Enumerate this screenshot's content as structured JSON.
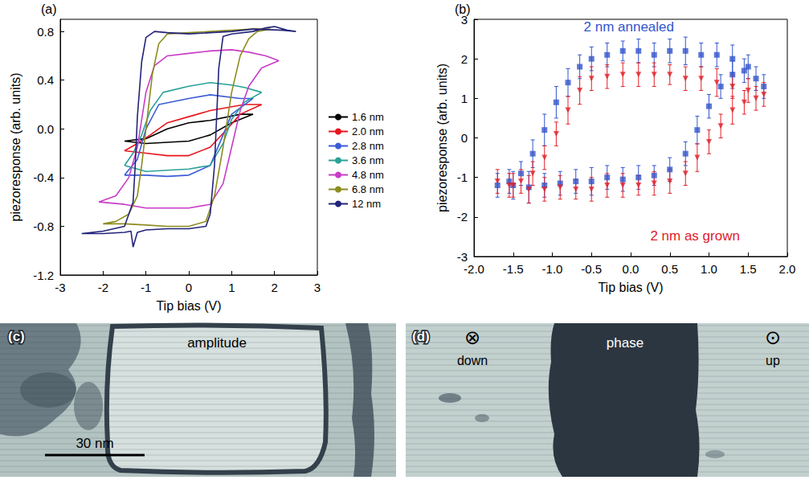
{
  "chart_data": [
    {
      "type": "line",
      "panel_label": "(a)",
      "x_label": "Tip bias (V)",
      "y_label": "piezoresponse (arb. units)",
      "xlim": [
        -3,
        3
      ],
      "xticks": [
        -3,
        -2,
        -1,
        0,
        1,
        2,
        3
      ],
      "ylim": [
        -1.2,
        0.9
      ],
      "yticks": [
        -1.2,
        -0.8,
        -0.4,
        {
          "value": 0,
          "label": "0.0"
        },
        0.4,
        0.8
      ],
      "grid": false,
      "legend": "right",
      "series": [
        {
          "name": "1.6 nm",
          "color": "#000000",
          "x": [
            -1.5,
            -1.0,
            -0.5,
            0.0,
            0.5,
            1.0,
            1.5,
            1.2,
            0.5,
            0.0,
            -0.5,
            -1.0,
            -1.5
          ],
          "values": [
            -0.1,
            -0.12,
            -0.11,
            -0.1,
            -0.05,
            0.05,
            0.12,
            0.12,
            0.07,
            0.05,
            0.0,
            -0.08,
            -0.1
          ]
        },
        {
          "name": "2.0 nm",
          "color": "#e8141c",
          "x": [
            -1.5,
            -1.0,
            -0.5,
            0.0,
            0.5,
            0.9,
            1.2,
            1.7,
            1.3,
            0.5,
            0.0,
            -0.5,
            -0.9,
            -1.2,
            -1.5
          ],
          "values": [
            -0.18,
            -0.2,
            -0.22,
            -0.22,
            -0.15,
            0.0,
            0.12,
            0.2,
            0.2,
            0.15,
            0.1,
            0.05,
            -0.05,
            -0.12,
            -0.18
          ]
        },
        {
          "name": "2.8 nm",
          "color": "#3b5bd6",
          "x": [
            -1.5,
            -1.0,
            -0.5,
            0.0,
            0.5,
            0.8,
            1.0,
            1.5,
            1.2,
            0.5,
            0.0,
            -0.7,
            -1.0,
            -1.2,
            -1.5
          ],
          "values": [
            -0.38,
            -0.38,
            -0.39,
            -0.38,
            -0.3,
            -0.05,
            0.12,
            0.25,
            0.25,
            0.28,
            0.25,
            0.2,
            0.0,
            -0.25,
            -0.38
          ]
        },
        {
          "name": "3.6 nm",
          "color": "#2aa198",
          "x": [
            -1.5,
            -1.0,
            -0.5,
            0.0,
            0.5,
            0.8,
            1.0,
            1.3,
            1.7,
            1.3,
            1.0,
            0.5,
            0.0,
            -0.6,
            -0.9,
            -1.1,
            -1.3,
            -1.5
          ],
          "values": [
            -0.3,
            -0.35,
            -0.34,
            -0.33,
            -0.3,
            -0.12,
            0.08,
            0.22,
            0.3,
            0.34,
            0.36,
            0.38,
            0.35,
            0.3,
            0.15,
            -0.05,
            -0.2,
            -0.3
          ]
        },
        {
          "name": "4.8 nm",
          "color": "#c83cc8",
          "x": [
            -2.1,
            -1.5,
            -1.0,
            -0.5,
            0.0,
            0.5,
            0.8,
            1.0,
            1.2,
            1.4,
            1.7,
            2.1,
            1.8,
            1.4,
            1.0,
            0.5,
            0.0,
            -0.5,
            -0.8,
            -1.0,
            -1.2,
            -1.4,
            -1.7,
            -2.1
          ],
          "values": [
            -0.6,
            -0.62,
            -0.65,
            -0.65,
            -0.65,
            -0.62,
            -0.45,
            -0.15,
            0.15,
            0.35,
            0.5,
            0.56,
            0.6,
            0.63,
            0.65,
            0.64,
            0.62,
            0.6,
            0.52,
            0.3,
            -0.15,
            -0.4,
            -0.55,
            -0.6
          ]
        },
        {
          "name": "6.8 nm",
          "color": "#8c8c1e",
          "x": [
            -2.0,
            -1.5,
            -1.0,
            -0.5,
            0.0,
            0.4,
            0.6,
            0.8,
            1.0,
            1.2,
            1.4,
            1.6,
            1.9,
            1.5,
            1.0,
            0.5,
            0.0,
            -0.5,
            -0.7,
            -0.85,
            -1.0,
            -1.1,
            -1.2,
            -1.4,
            -1.7,
            -2.0
          ],
          "values": [
            -0.78,
            -0.78,
            -0.79,
            -0.8,
            -0.8,
            -0.76,
            -0.55,
            -0.15,
            0.3,
            0.6,
            0.74,
            0.8,
            0.82,
            0.82,
            0.81,
            0.8,
            0.79,
            0.78,
            0.7,
            0.45,
            0.0,
            -0.3,
            -0.55,
            -0.7,
            -0.76,
            -0.78
          ]
        },
        {
          "name": "12 nm",
          "color": "#23237a",
          "x": [
            -2.5,
            -2.0,
            -1.5,
            -1.35,
            -1.3,
            -1.2,
            -1.0,
            -0.5,
            0.0,
            0.4,
            0.5,
            0.6,
            0.65,
            0.7,
            0.8,
            1.0,
            1.5,
            1.8,
            2.0,
            2.3,
            2.5,
            2.2,
            1.5,
            1.0,
            0.5,
            0.0,
            -0.5,
            -0.8,
            -1.0,
            -1.1,
            -1.2,
            -1.25,
            -1.3,
            -1.5,
            -2.0,
            -2.5
          ],
          "values": [
            -0.86,
            -0.86,
            -0.85,
            -0.84,
            -0.97,
            -0.85,
            -0.83,
            -0.82,
            -0.82,
            -0.8,
            -0.7,
            -0.3,
            0.1,
            0.5,
            0.76,
            0.78,
            0.8,
            0.83,
            0.84,
            0.81,
            0.8,
            0.81,
            0.82,
            0.8,
            0.79,
            0.78,
            0.79,
            0.8,
            0.75,
            0.55,
            0.1,
            -0.3,
            -0.6,
            -0.8,
            -0.84,
            -0.86
          ]
        }
      ]
    },
    {
      "type": "scatter",
      "panel_label": "(b)",
      "x_label": "Tip bias (V)",
      "y_label": "piezoresponse (arb. units)",
      "xlim": [
        -2,
        2
      ],
      "xticks": [
        {
          "value": -2,
          "label": "-2.0"
        },
        -1.5,
        {
          "value": -1,
          "label": "-1.0"
        },
        -0.5,
        {
          "value": 0,
          "label": "0.0"
        },
        0.5,
        {
          "value": 1,
          "label": "1.0"
        },
        1.5,
        {
          "value": 2,
          "label": "2.0"
        }
      ],
      "ylim": [
        -3,
        3
      ],
      "yticks": [
        -3,
        -2,
        -1,
        0,
        1,
        2,
        3
      ],
      "grid": false,
      "series": [
        {
          "name": "2 nm annealed",
          "color": "#3355cc",
          "marker": "square",
          "x": [
            -1.7,
            -1.5,
            -1.3,
            -1.1,
            -0.9,
            -0.7,
            -0.5,
            -0.3,
            -0.1,
            0.1,
            0.3,
            0.5,
            0.7,
            0.85,
            1.0,
            1.15,
            1.3,
            1.45,
            1.6,
            1.7,
            1.5,
            1.3,
            1.1,
            0.9,
            0.7,
            0.5,
            0.3,
            0.1,
            -0.1,
            -0.3,
            -0.5,
            -0.65,
            -0.8,
            -0.95,
            -1.1,
            -1.25,
            -1.4,
            -1.55
          ],
          "values": [
            -1.2,
            -1.2,
            -1.25,
            -1.2,
            -1.15,
            -1.1,
            -1.1,
            -1.0,
            -1.05,
            -1.0,
            -0.95,
            -0.8,
            -0.4,
            0.2,
            0.8,
            1.3,
            1.6,
            1.7,
            1.5,
            1.3,
            1.8,
            2.0,
            2.1,
            2.1,
            2.2,
            2.2,
            2.1,
            2.2,
            2.2,
            2.1,
            2.0,
            1.8,
            1.4,
            0.9,
            0.2,
            -0.4,
            -0.9,
            -1.1
          ],
          "errors": [
            0.3,
            0.35,
            0.4,
            0.3,
            0.3,
            0.3,
            0.35,
            0.3,
            0.3,
            0.3,
            0.25,
            0.3,
            0.3,
            0.35,
            0.3,
            0.3,
            0.35,
            0.3,
            0.3,
            0.3,
            0.3,
            0.35,
            0.3,
            0.3,
            0.35,
            0.3,
            0.3,
            0.3,
            0.25,
            0.3,
            0.3,
            0.3,
            0.35,
            0.4,
            0.4,
            0.35,
            0.3,
            0.3
          ]
        },
        {
          "name": "2 nm as grown",
          "color": "#e0202a",
          "marker": "triangle-down",
          "x": [
            -1.7,
            -1.5,
            -1.3,
            -1.1,
            -0.9,
            -0.7,
            -0.5,
            -0.3,
            -0.1,
            0.1,
            0.3,
            0.5,
            0.7,
            0.85,
            1.0,
            1.15,
            1.3,
            1.45,
            1.6,
            1.7,
            1.5,
            1.3,
            1.1,
            0.9,
            0.7,
            0.5,
            0.3,
            0.1,
            -0.1,
            -0.3,
            -0.5,
            -0.65,
            -0.8,
            -0.95,
            -1.1,
            -1.25,
            -1.4,
            -1.55
          ],
          "values": [
            -1.1,
            -1.2,
            -1.3,
            -1.3,
            -1.25,
            -1.3,
            -1.3,
            -1.2,
            -1.2,
            -1.2,
            -1.15,
            -1.1,
            -0.9,
            -0.5,
            -0.1,
            0.3,
            0.7,
            0.9,
            1.0,
            1.1,
            1.2,
            1.3,
            1.4,
            1.5,
            1.5,
            1.6,
            1.6,
            1.6,
            1.6,
            1.55,
            1.5,
            1.2,
            0.7,
            0.1,
            -0.5,
            -0.9,
            -1.1,
            -1.2
          ],
          "errors": [
            0.3,
            0.3,
            0.35,
            0.3,
            0.3,
            0.25,
            0.3,
            0.3,
            0.3,
            0.25,
            0.3,
            0.3,
            0.3,
            0.35,
            0.3,
            0.3,
            0.35,
            0.3,
            0.3,
            0.3,
            0.3,
            0.3,
            0.35,
            0.3,
            0.3,
            0.25,
            0.3,
            0.3,
            0.3,
            0.3,
            0.3,
            0.35,
            0.35,
            0.3,
            0.3,
            0.3,
            0.3,
            0.3
          ]
        }
      ]
    }
  ],
  "image_panels": [
    {
      "label": "(c)",
      "title": "amplitude",
      "scale_bar": "30 nm"
    },
    {
      "label": "(d)",
      "title": "phase",
      "markers": [
        {
          "symbol": "⊗",
          "text": "down"
        },
        {
          "symbol": "⊙",
          "text": "up"
        }
      ]
    }
  ]
}
